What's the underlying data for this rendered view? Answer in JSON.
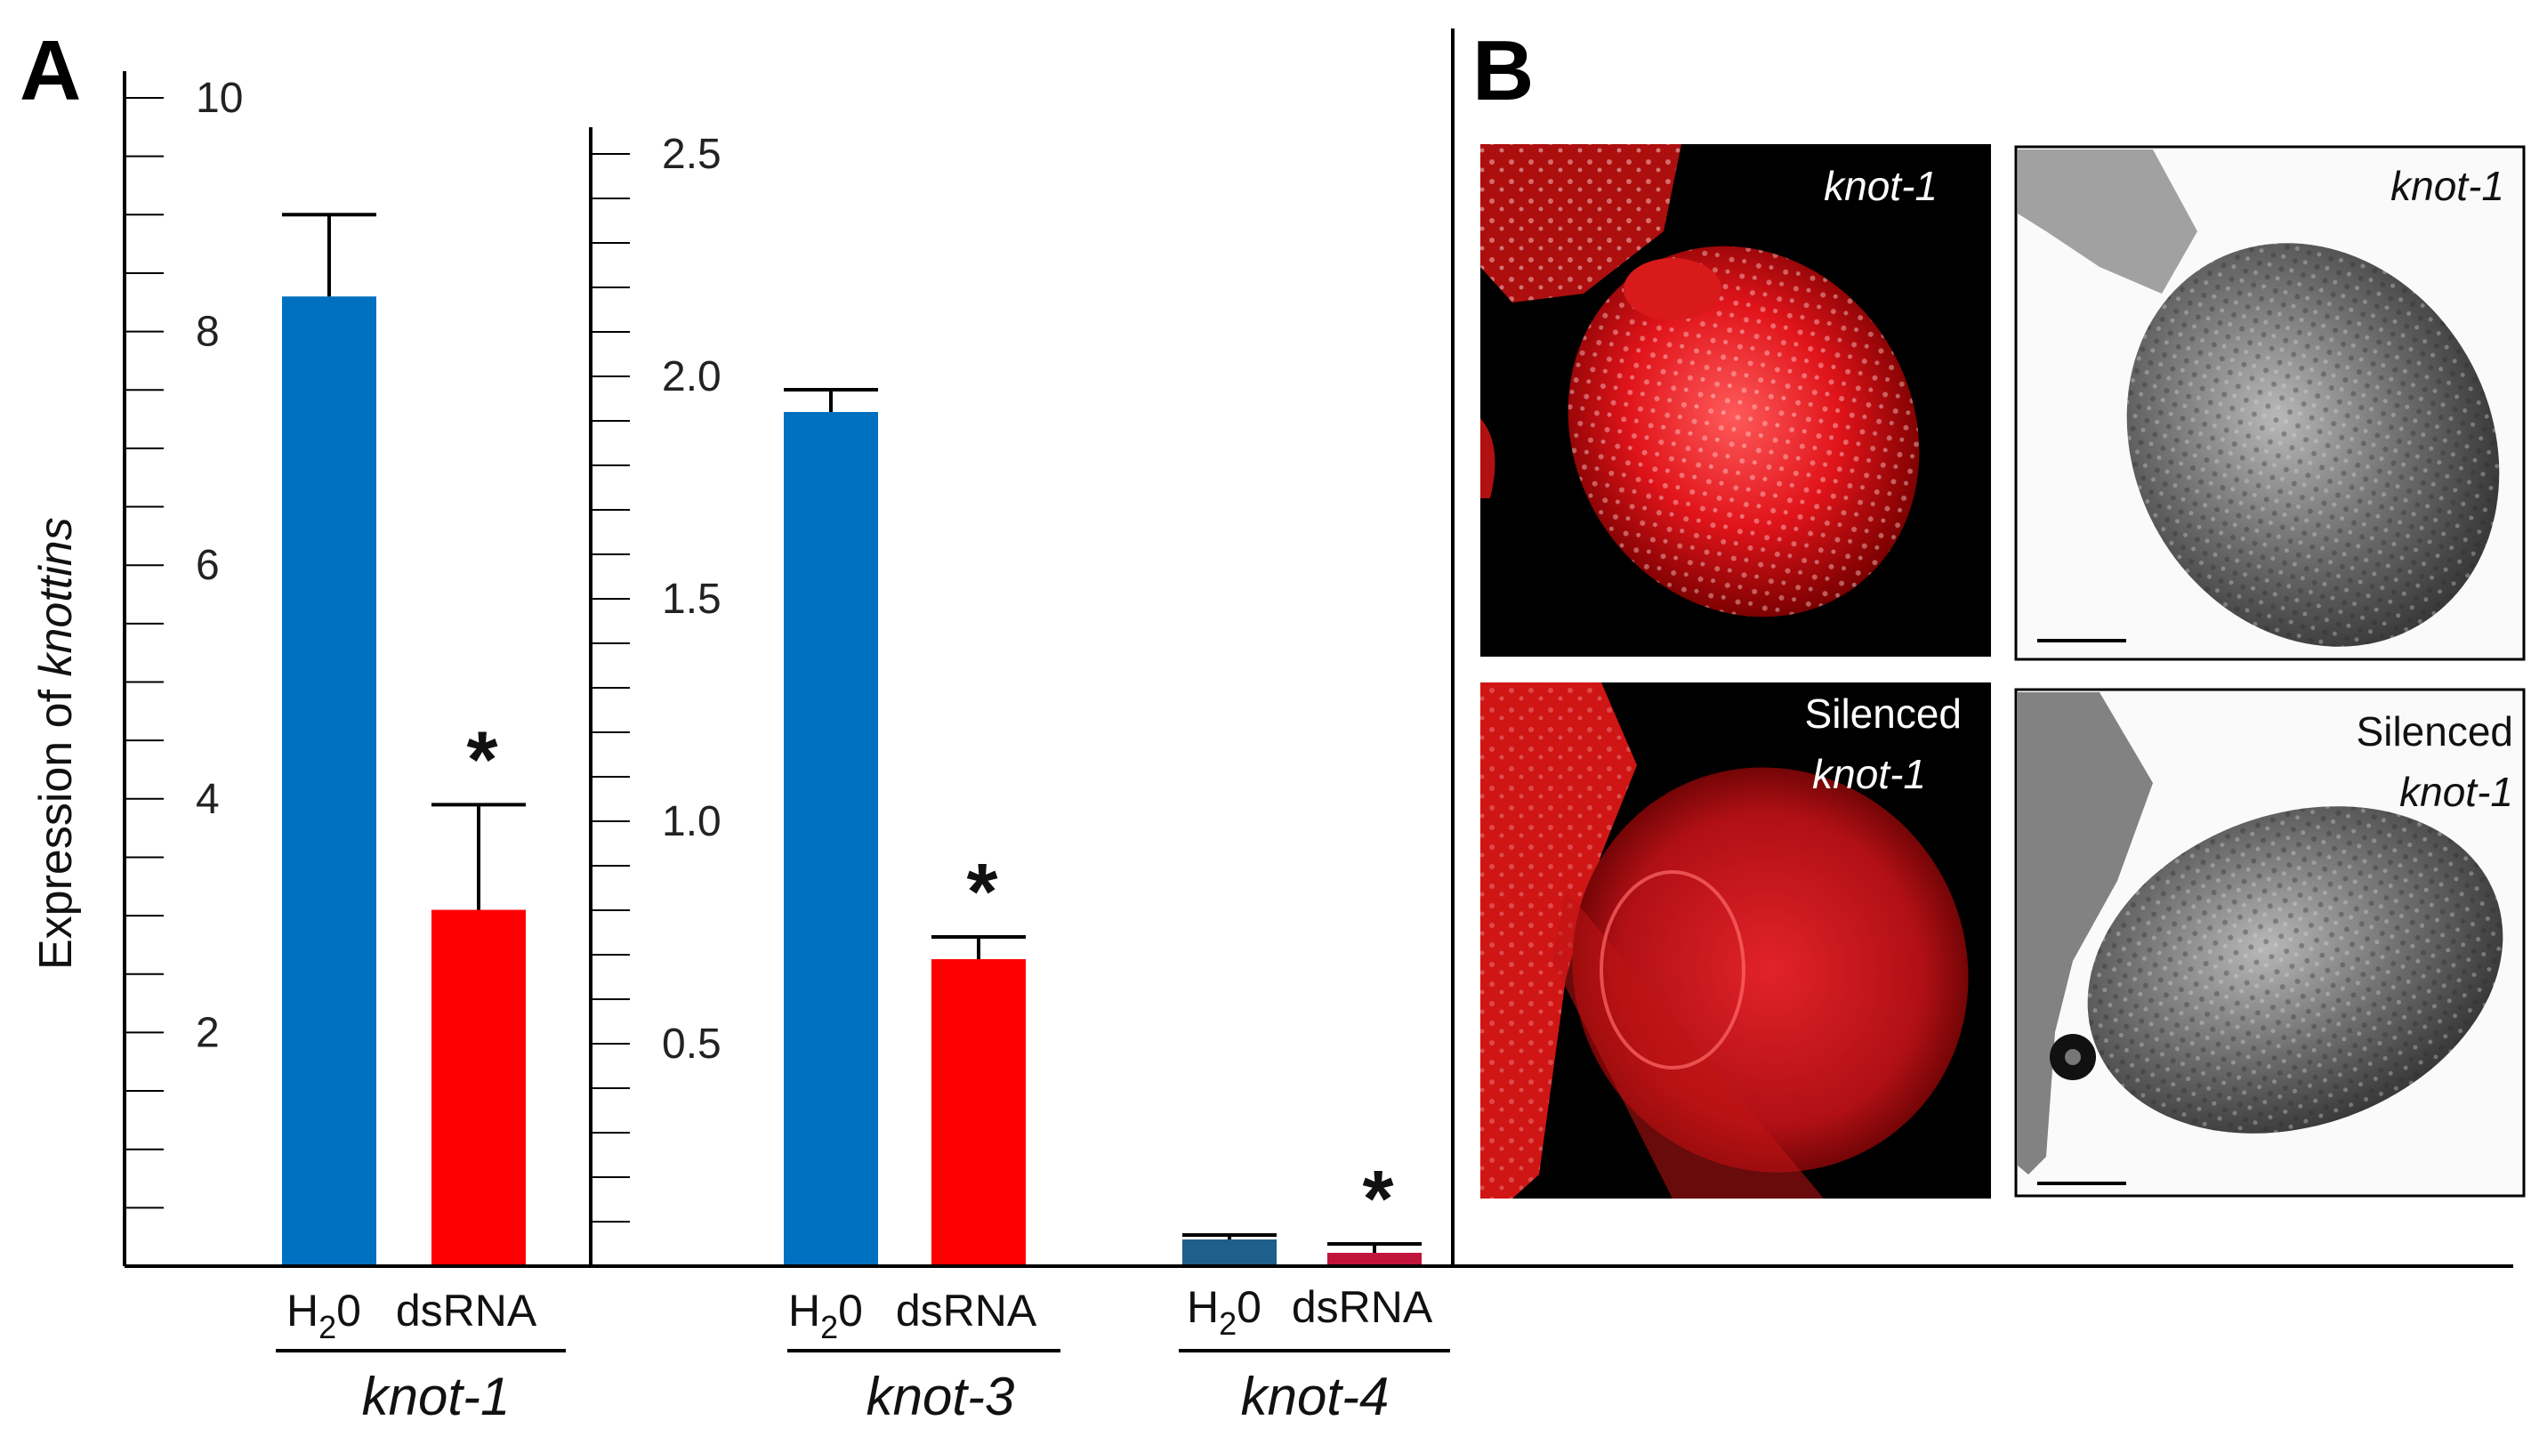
{
  "panel_a_label": "A",
  "panel_b_label": "B",
  "chart_data": [
    {
      "type": "bar",
      "title": "",
      "ylabel_prefix": "Expression of ",
      "ylabel_italic": "knottins",
      "ylim": [
        0,
        10
      ],
      "ytick_labels": [
        "2",
        "4",
        "6",
        "8",
        "10"
      ],
      "categories": [
        "H₂0",
        "dsRNA"
      ],
      "gene": "knot-1",
      "values": [
        8.3,
        3.05
      ],
      "errors": [
        0.7,
        0.9
      ],
      "colors": [
        "#0070C0",
        "#FF0000"
      ],
      "significance": [
        "",
        "*"
      ]
    },
    {
      "type": "bar",
      "title": "",
      "ylim": [
        0,
        2.5
      ],
      "ytick_labels": [
        "0.5",
        "1.0",
        "1.5",
        "2.0",
        "2.5"
      ],
      "groups": [
        {
          "gene": "knot-3",
          "categories": [
            "H₂0",
            "dsRNA"
          ],
          "values": [
            1.92,
            0.69
          ],
          "errors": [
            0.05,
            0.05
          ],
          "colors": [
            "#0070C0",
            "#FF0000"
          ],
          "significance": [
            "",
            "*"
          ]
        },
        {
          "gene": "knot-4",
          "categories": [
            "H₂0",
            "dsRNA"
          ],
          "values": [
            0.06,
            0.03
          ],
          "errors": [
            0.01,
            0.02
          ],
          "colors": [
            "#1F5F8B",
            "#C0143C"
          ],
          "significance": [
            "",
            "*"
          ]
        }
      ]
    }
  ],
  "panel_b": {
    "images": [
      {
        "label_lines": [
          "knot-1"
        ],
        "italic": [
          true
        ],
        "style": "fluorescence"
      },
      {
        "label_lines": [
          "knot-1"
        ],
        "italic": [
          true
        ],
        "style": "brightfield"
      },
      {
        "label_lines": [
          "Silenced",
          "knot-1"
        ],
        "italic": [
          false,
          true
        ],
        "style": "fluorescence"
      },
      {
        "label_lines": [
          "Silenced",
          "knot-1"
        ],
        "italic": [
          false,
          true
        ],
        "style": "brightfield"
      }
    ]
  }
}
